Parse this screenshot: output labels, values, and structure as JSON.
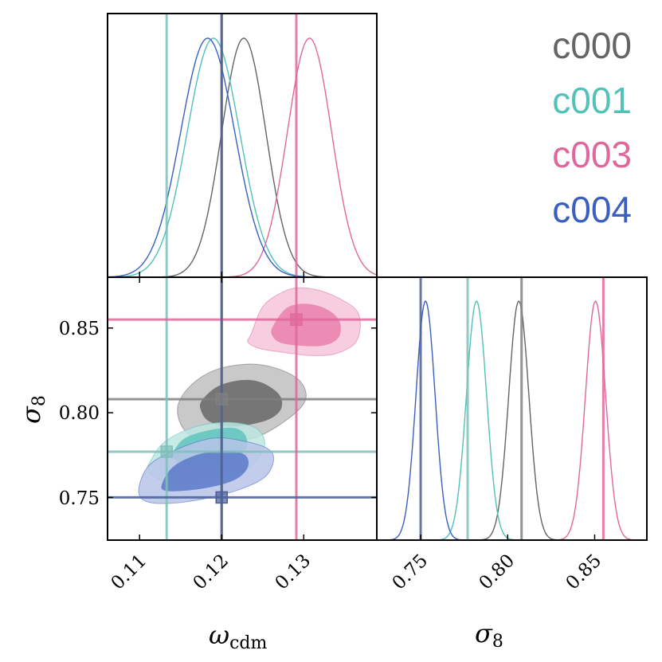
{
  "chart_data": {
    "type": "corner",
    "title": "",
    "parameters": [
      {
        "name": "omega_cdm",
        "label_main": "ω",
        "label_sub": "cdm",
        "range": [
          0.1061,
          0.1389
        ],
        "ticks": [
          0.11,
          0.12,
          0.13
        ],
        "tick_labels": [
          "0.11",
          "0.12",
          "0.13"
        ]
      },
      {
        "name": "sigma8",
        "label_main": "σ",
        "label_sub": "8",
        "range": [
          0.7248,
          0.88
        ],
        "ticks": [
          0.75,
          0.8,
          0.85
        ],
        "tick_labels": [
          "0.75",
          "0.80",
          "0.85"
        ]
      }
    ],
    "legend": {
      "placement": "top-right"
    },
    "series": [
      {
        "name": "c000",
        "color": "#646464",
        "truth_color": "#808080",
        "truth": {
          "omega_cdm": 0.12,
          "sigma8": 0.808
        },
        "marginal": {
          "omega_cdm": {
            "mean": 0.1227,
            "sd": 0.0027
          },
          "sigma8": {
            "mean": 0.8064,
            "sd": 0.0058
          }
        },
        "contour_fill": [
          "#bfbfbf",
          "#676767"
        ],
        "contour_68": [
          [
            0.11757,
            0.80704
          ],
          [
            0.11951,
            0.81549
          ],
          [
            0.12243,
            0.81925
          ],
          [
            0.12485,
            0.81784
          ],
          [
            0.12699,
            0.8108
          ],
          [
            0.12728,
            0.80282
          ],
          [
            0.12602,
            0.79671
          ],
          [
            0.1234,
            0.79296
          ],
          [
            0.12049,
            0.79202
          ],
          [
            0.11835,
            0.79531
          ],
          [
            0.11748,
            0.80141
          ]
        ],
        "contour_95": [
          [
            0.11466,
            0.80376
          ],
          [
            0.11612,
            0.81549
          ],
          [
            0.11903,
            0.82488
          ],
          [
            0.12291,
            0.82864
          ],
          [
            0.12631,
            0.82676
          ],
          [
            0.12922,
            0.82019
          ],
          [
            0.13029,
            0.8108
          ],
          [
            0.12951,
            0.80235
          ],
          [
            0.1268,
            0.79202
          ],
          [
            0.12388,
            0.78498
          ],
          [
            0.12049,
            0.78263
          ],
          [
            0.11689,
            0.78498
          ],
          [
            0.11515,
            0.79202
          ]
        ]
      },
      {
        "name": "c001",
        "color": "#52c1b8",
        "truth_color": "#7fbfb9",
        "truth": {
          "omega_cdm": 0.1133,
          "sigma8": 0.777
        },
        "marginal": {
          "omega_cdm": {
            "mean": 0.119,
            "sd": 0.0032
          },
          "sigma8": {
            "mean": 0.7821,
            "sd": 0.0058
          }
        },
        "contour_68": [
          [
            0.11417,
            0.777
          ],
          [
            0.11553,
            0.78498
          ],
          [
            0.11845,
            0.78967
          ],
          [
            0.12136,
            0.79108
          ],
          [
            0.12282,
            0.78732
          ],
          [
            0.12301,
            0.77934
          ],
          [
            0.12136,
            0.7723
          ],
          [
            0.11845,
            0.76901
          ],
          [
            0.11602,
            0.76854
          ],
          [
            0.11427,
            0.7723
          ]
        ],
        "contour_fill": [
          "#bde6e2",
          "#5ec4bc"
        ],
        "contour_95": [
          [
            0.11126,
            0.77089
          ],
          [
            0.11301,
            0.78263
          ],
          [
            0.11641,
            0.79108
          ],
          [
            0.12029,
            0.79437
          ],
          [
            0.12369,
            0.79202
          ],
          [
            0.12515,
            0.78498
          ],
          [
            0.12485,
            0.77559
          ],
          [
            0.12272,
            0.7662
          ],
          [
            0.11883,
            0.76056
          ],
          [
            0.11495,
            0.75822
          ],
          [
            0.11204,
            0.7615
          ],
          [
            0.11107,
            0.7662
          ]
        ]
      },
      {
        "name": "c003",
        "color": "#e0679b",
        "truth_color": "#e0679b",
        "truth": {
          "omega_cdm": 0.1291,
          "sigma8": 0.855
        },
        "marginal": {
          "omega_cdm": {
            "mean": 0.1307,
            "sd": 0.0027
          },
          "sigma8": {
            "mean": 0.8505,
            "sd": 0.0058
          }
        },
        "contour_fill": [
          "#f5c6da",
          "#ea80ad"
        ],
        "contour_68": [
          [
            0.12631,
            0.85164
          ],
          [
            0.12796,
            0.86197
          ],
          [
            0.13039,
            0.86432
          ],
          [
            0.13282,
            0.86103
          ],
          [
            0.13437,
            0.85399
          ],
          [
            0.13427,
            0.8446
          ],
          [
            0.13262,
            0.83991
          ],
          [
            0.1299,
            0.83944
          ],
          [
            0.12718,
            0.84131
          ],
          [
            0.12612,
            0.84601
          ]
        ],
        "contour_95": [
          [
            0.12359,
            0.84648
          ],
          [
            0.12505,
            0.86291
          ],
          [
            0.12748,
            0.87136
          ],
          [
            0.12942,
            0.87371
          ],
          [
            0.13184,
            0.8723
          ],
          [
            0.13427,
            0.86761
          ],
          [
            0.13641,
            0.86056
          ],
          [
            0.13689,
            0.85117
          ],
          [
            0.13621,
            0.84085
          ],
          [
            0.13379,
            0.83474
          ],
          [
            0.13087,
            0.8338
          ],
          [
            0.12748,
            0.83568
          ],
          [
            0.12456,
            0.83803
          ],
          [
            0.1232,
            0.84178
          ]
        ]
      },
      {
        "name": "c004",
        "color": "#3b5fc0",
        "truth_color": "#4a5f9a",
        "truth": {
          "omega_cdm": 0.12,
          "sigma8": 0.75
        },
        "marginal": {
          "omega_cdm": {
            "mean": 0.1183,
            "sd": 0.0033
          },
          "sigma8": {
            "mean": 0.7528,
            "sd": 0.0055
          }
        },
        "contour_fill": [
          "#b7c4e8",
          "#5a79c9"
        ],
        "contour_68": [
          [
            0.11272,
            0.75775
          ],
          [
            0.11408,
            0.76808
          ],
          [
            0.11699,
            0.77512
          ],
          [
            0.12039,
            0.77746
          ],
          [
            0.12282,
            0.77512
          ],
          [
            0.1232,
            0.76808
          ],
          [
            0.12184,
            0.76103
          ],
          [
            0.11893,
            0.75634
          ],
          [
            0.11553,
            0.75399
          ],
          [
            0.11311,
            0.75399
          ]
        ],
        "contour_95": [
          [
            0.1099,
            0.75493
          ],
          [
            0.11117,
            0.76901
          ],
          [
            0.11456,
            0.7784
          ],
          [
            0.11893,
            0.78498
          ],
          [
            0.12282,
            0.7831
          ],
          [
            0.12573,
            0.7784
          ],
          [
            0.12631,
            0.77136
          ],
          [
            0.12524,
            0.76197
          ],
          [
            0.12233,
            0.75493
          ],
          [
            0.11796,
            0.7493
          ],
          [
            0.11359,
            0.74648
          ],
          [
            0.11068,
            0.74789
          ]
        ]
      }
    ]
  }
}
